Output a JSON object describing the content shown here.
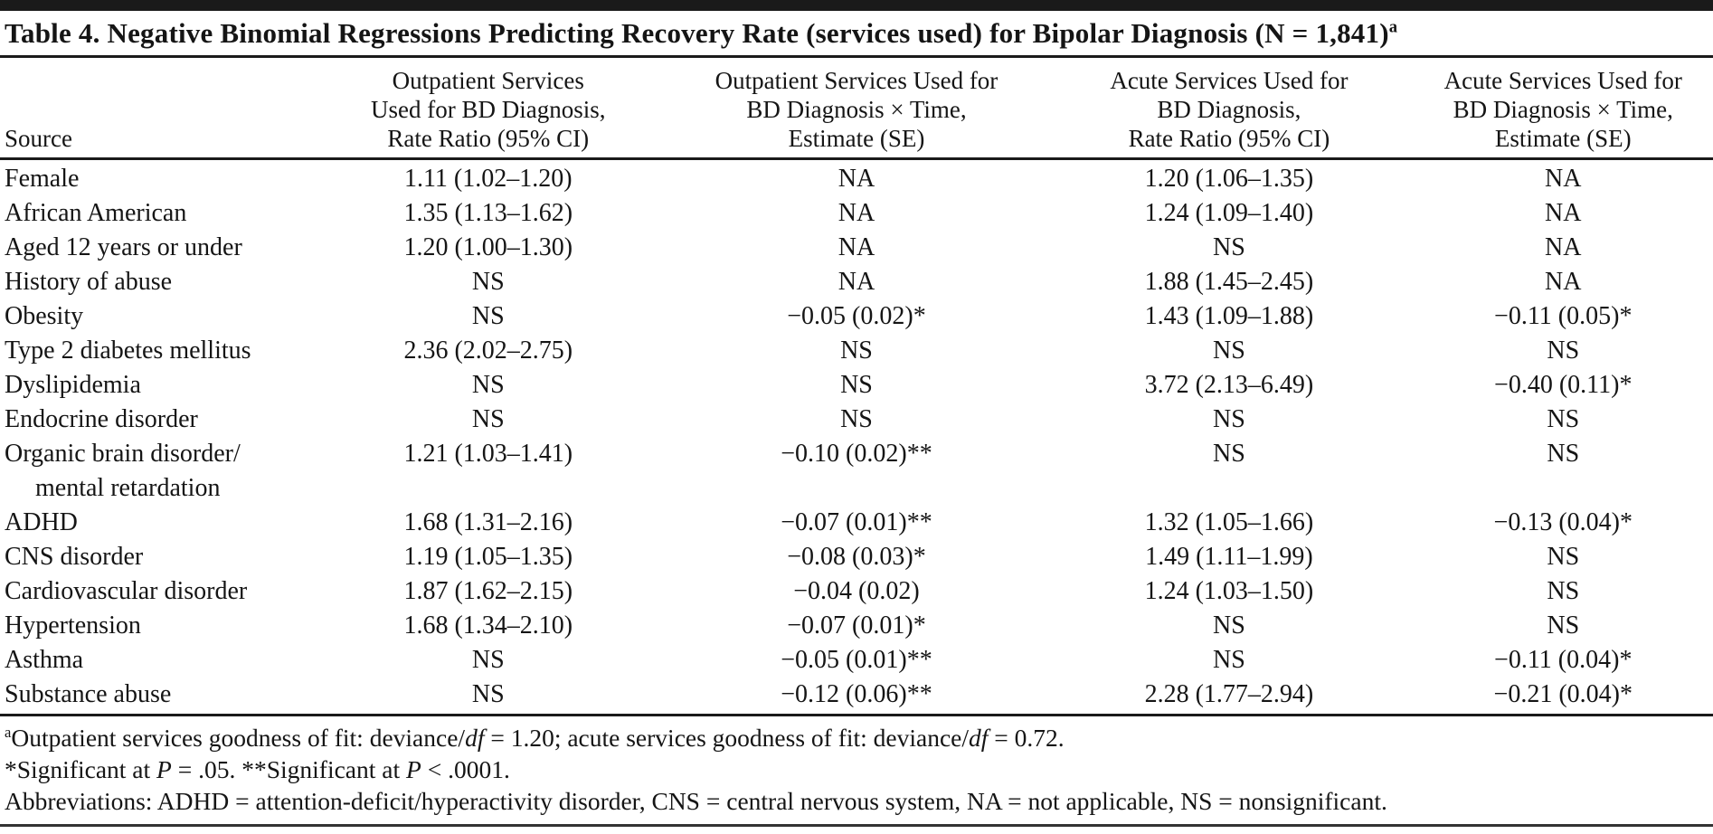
{
  "table": {
    "title": "Table 4. Negative Binomial Regressions Predicting Recovery Rate (services used) for Bipolar Diagnosis (N = 1,841)",
    "title_note_marker": "a",
    "columns": [
      {
        "label": "Source"
      },
      {
        "lines": [
          "Outpatient Services",
          "Used for BD Diagnosis,",
          "Rate Ratio (95% CI)"
        ]
      },
      {
        "lines": [
          "Outpatient Services Used for",
          "BD Diagnosis × Time,",
          "Estimate (SE)"
        ]
      },
      {
        "lines": [
          "Acute Services Used for",
          "BD Diagnosis,",
          "Rate Ratio (95% CI)"
        ]
      },
      {
        "lines": [
          "Acute Services Used for",
          "BD Diagnosis × Time,",
          "Estimate (SE)"
        ]
      }
    ],
    "rows": [
      {
        "source": "Female",
        "cells": [
          "1.11 (1.02–1.20)",
          "NA",
          "1.20 (1.06–1.35)",
          "NA"
        ]
      },
      {
        "source": "African American",
        "cells": [
          "1.35 (1.13–1.62)",
          "NA",
          "1.24 (1.09–1.40)",
          "NA"
        ]
      },
      {
        "source": "Aged 12 years or under",
        "cells": [
          "1.20 (1.00–1.30)",
          "NA",
          "NS",
          "NA"
        ]
      },
      {
        "source": "History of abuse",
        "cells": [
          "NS",
          "NA",
          "1.88 (1.45–2.45)",
          "NA"
        ]
      },
      {
        "source": "Obesity",
        "cells": [
          "NS",
          "−0.05 (0.02)*",
          "1.43 (1.09–1.88)",
          "−0.11 (0.05)*"
        ]
      },
      {
        "source": "Type 2 diabetes mellitus",
        "cells": [
          "2.36 (2.02–2.75)",
          "NS",
          "NS",
          "NS"
        ]
      },
      {
        "source": "Dyslipidemia",
        "cells": [
          "NS",
          "NS",
          "3.72 (2.13–6.49)",
          "−0.40 (0.11)*"
        ]
      },
      {
        "source": "Endocrine disorder",
        "cells": [
          "NS",
          "NS",
          "NS",
          "NS"
        ]
      },
      {
        "source": "Organic brain disorder/",
        "source_line2": "mental retardation",
        "cells": [
          "1.21 (1.03–1.41)",
          "−0.10 (0.02)**",
          "NS",
          "NS"
        ]
      },
      {
        "source": "ADHD",
        "cells": [
          "1.68 (1.31–2.16)",
          "−0.07 (0.01)**",
          "1.32 (1.05–1.66)",
          "−0.13 (0.04)*"
        ]
      },
      {
        "source": "CNS disorder",
        "cells": [
          "1.19 (1.05–1.35)",
          "−0.08 (0.03)*",
          "1.49 (1.11–1.99)",
          "NS"
        ]
      },
      {
        "source": "Cardiovascular disorder",
        "cells": [
          "1.87 (1.62–2.15)",
          "−0.04 (0.02)",
          "1.24 (1.03–1.50)",
          "NS"
        ]
      },
      {
        "source": "Hypertension",
        "cells": [
          "1.68 (1.34–2.10)",
          "−0.07 (0.01)*",
          "NS",
          "NS"
        ]
      },
      {
        "source": "Asthma",
        "cells": [
          "NS",
          "−0.05 (0.01)**",
          "NS",
          "−0.11 (0.04)*"
        ]
      },
      {
        "source": "Substance abuse",
        "cells": [
          "NS",
          "−0.12 (0.06)**",
          "2.28 (1.77–2.94)",
          "−0.21 (0.04)*"
        ]
      }
    ]
  },
  "footnotes": {
    "fit": {
      "marker": "a",
      "parts": [
        "Outpatient services goodness of fit: deviance/",
        "df",
        " = 1.20; acute services goodness of fit: deviance/",
        "df",
        " = 0.72."
      ]
    },
    "significance": {
      "parts": [
        "*Significant at ",
        "P",
        " = .05. **Significant at ",
        "P",
        " < .0001."
      ]
    },
    "abbreviations": "Abbreviations: ADHD = attention-deficit/hyperactivity disorder, CNS = central nervous system, NA = not applicable, NS = nonsignificant."
  }
}
